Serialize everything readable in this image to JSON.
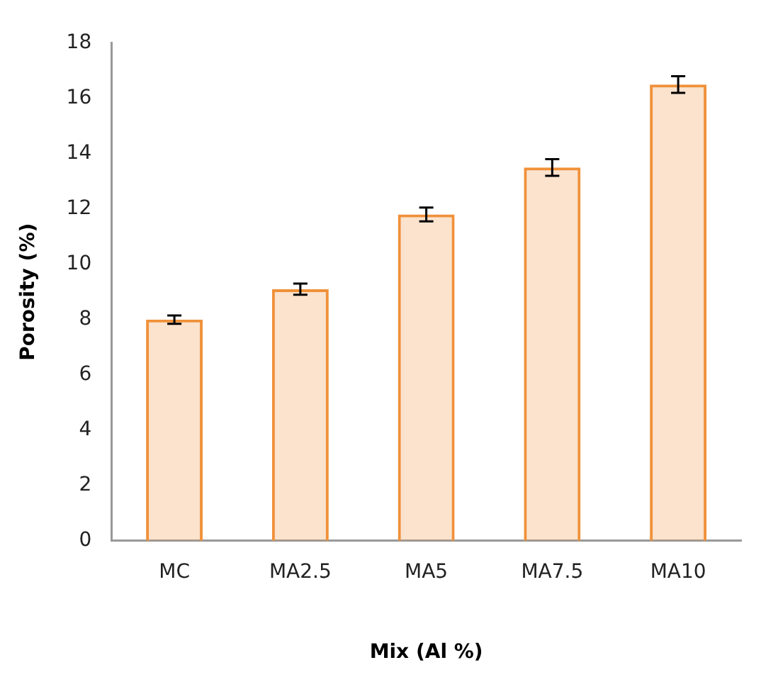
{
  "chart_data": {
    "type": "bar",
    "xlabel": "Mix (Al %)",
    "ylabel": "Porosity (%)",
    "categories": [
      "MC",
      "MA2.5",
      "MA5",
      "MA7.5",
      "MA10"
    ],
    "values": [
      8.0,
      9.1,
      11.8,
      13.5,
      16.5
    ],
    "errors": [
      0.15,
      0.2,
      0.25,
      0.3,
      0.3
    ],
    "color": "#f0913a",
    "ylim": [
      0,
      18
    ],
    "yticks": [
      0,
      2,
      4,
      6,
      8,
      10,
      12,
      14,
      16,
      18
    ],
    "grid": false,
    "legend": false
  }
}
